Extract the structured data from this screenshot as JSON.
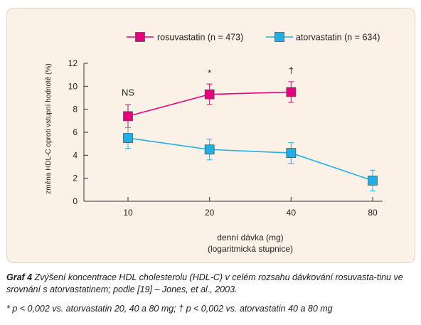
{
  "chart_data": {
    "type": "line",
    "x_scale": "log",
    "x": [
      10,
      20,
      40,
      80
    ],
    "xticks": [
      "10",
      "20",
      "40",
      "80"
    ],
    "yticks": [
      "0",
      "2",
      "4",
      "6",
      "8",
      "10",
      "12"
    ],
    "ylim": [
      0,
      12
    ],
    "ylabel": "změna HDL-C oproti vstupní hodnotě (%)",
    "xlabel": "denní dávka (mg)",
    "xlabel2": "(logaritmická stupnice)",
    "legend_position": "top",
    "series": [
      {
        "name": "rosuvastatin (n = 473)",
        "color": "#e6007e",
        "x": [
          10,
          20,
          40
        ],
        "values": [
          7.4,
          9.3,
          9.5
        ],
        "err": [
          1.0,
          0.9,
          0.9
        ]
      },
      {
        "name": "atorvastatin (n = 634)",
        "color": "#1fb1e6",
        "x": [
          10,
          20,
          40,
          80
        ],
        "values": [
          5.5,
          4.5,
          4.2,
          1.8
        ],
        "err": [
          0.9,
          0.9,
          0.9,
          0.9
        ]
      }
    ],
    "annotations": [
      {
        "text": "NS",
        "x": 10,
        "y": 9.2
      },
      {
        "text": "*",
        "x": 20,
        "y": 10.9
      },
      {
        "text": "†",
        "x": 40,
        "y": 11.1
      }
    ]
  },
  "caption": {
    "label": "Graf 4",
    "text": "Zvýšení koncentrace HDL cholesterolu (HDL-C) v celém rozsahu dávkování rosuvasta-tinu ve srovnání s atorvastatinem; podle [19] – Jones, et al., 2003.",
    "footnote": "* p < 0,002 vs. atorvastatin 20, 40 a 80 mg; † p < 0,002 vs. atorvastatin 40 a 80 mg"
  }
}
